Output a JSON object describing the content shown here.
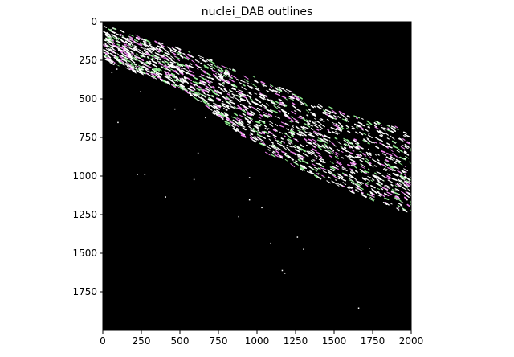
{
  "chart_data": {
    "type": "heatmap",
    "title": "nuclei_DAB outlines",
    "xlabel": "",
    "ylabel": "",
    "xlim": [
      0,
      2000
    ],
    "ylim": [
      2000,
      0
    ],
    "x_ticks": [
      "0",
      "250",
      "500",
      "750",
      "1000",
      "1250",
      "1500",
      "1750",
      "2000"
    ],
    "y_ticks": [
      "0",
      "250",
      "500",
      "750",
      "1000",
      "1250",
      "1500",
      "1750"
    ],
    "x_tick_values": [
      0,
      250,
      500,
      750,
      1000,
      1250,
      1500,
      1750,
      2000
    ],
    "y_tick_values": [
      0,
      250,
      500,
      750,
      1000,
      1250,
      1500,
      1750
    ],
    "grid": false,
    "background_color": "#000000",
    "outline_colors": [
      "#ffffff",
      "#90ee90",
      "#ee82ee"
    ],
    "tissue_band_upper_edge": [
      [
        0,
        20
      ],
      [
        500,
        170
      ],
      [
        1000,
        360
      ],
      [
        1500,
        560
      ],
      [
        2000,
        700
      ]
    ],
    "tissue_band_lower_edge": [
      [
        0,
        250
      ],
      [
        500,
        430
      ],
      [
        1000,
        820
      ],
      [
        1500,
        1060
      ],
      [
        2000,
        1250
      ]
    ]
  }
}
